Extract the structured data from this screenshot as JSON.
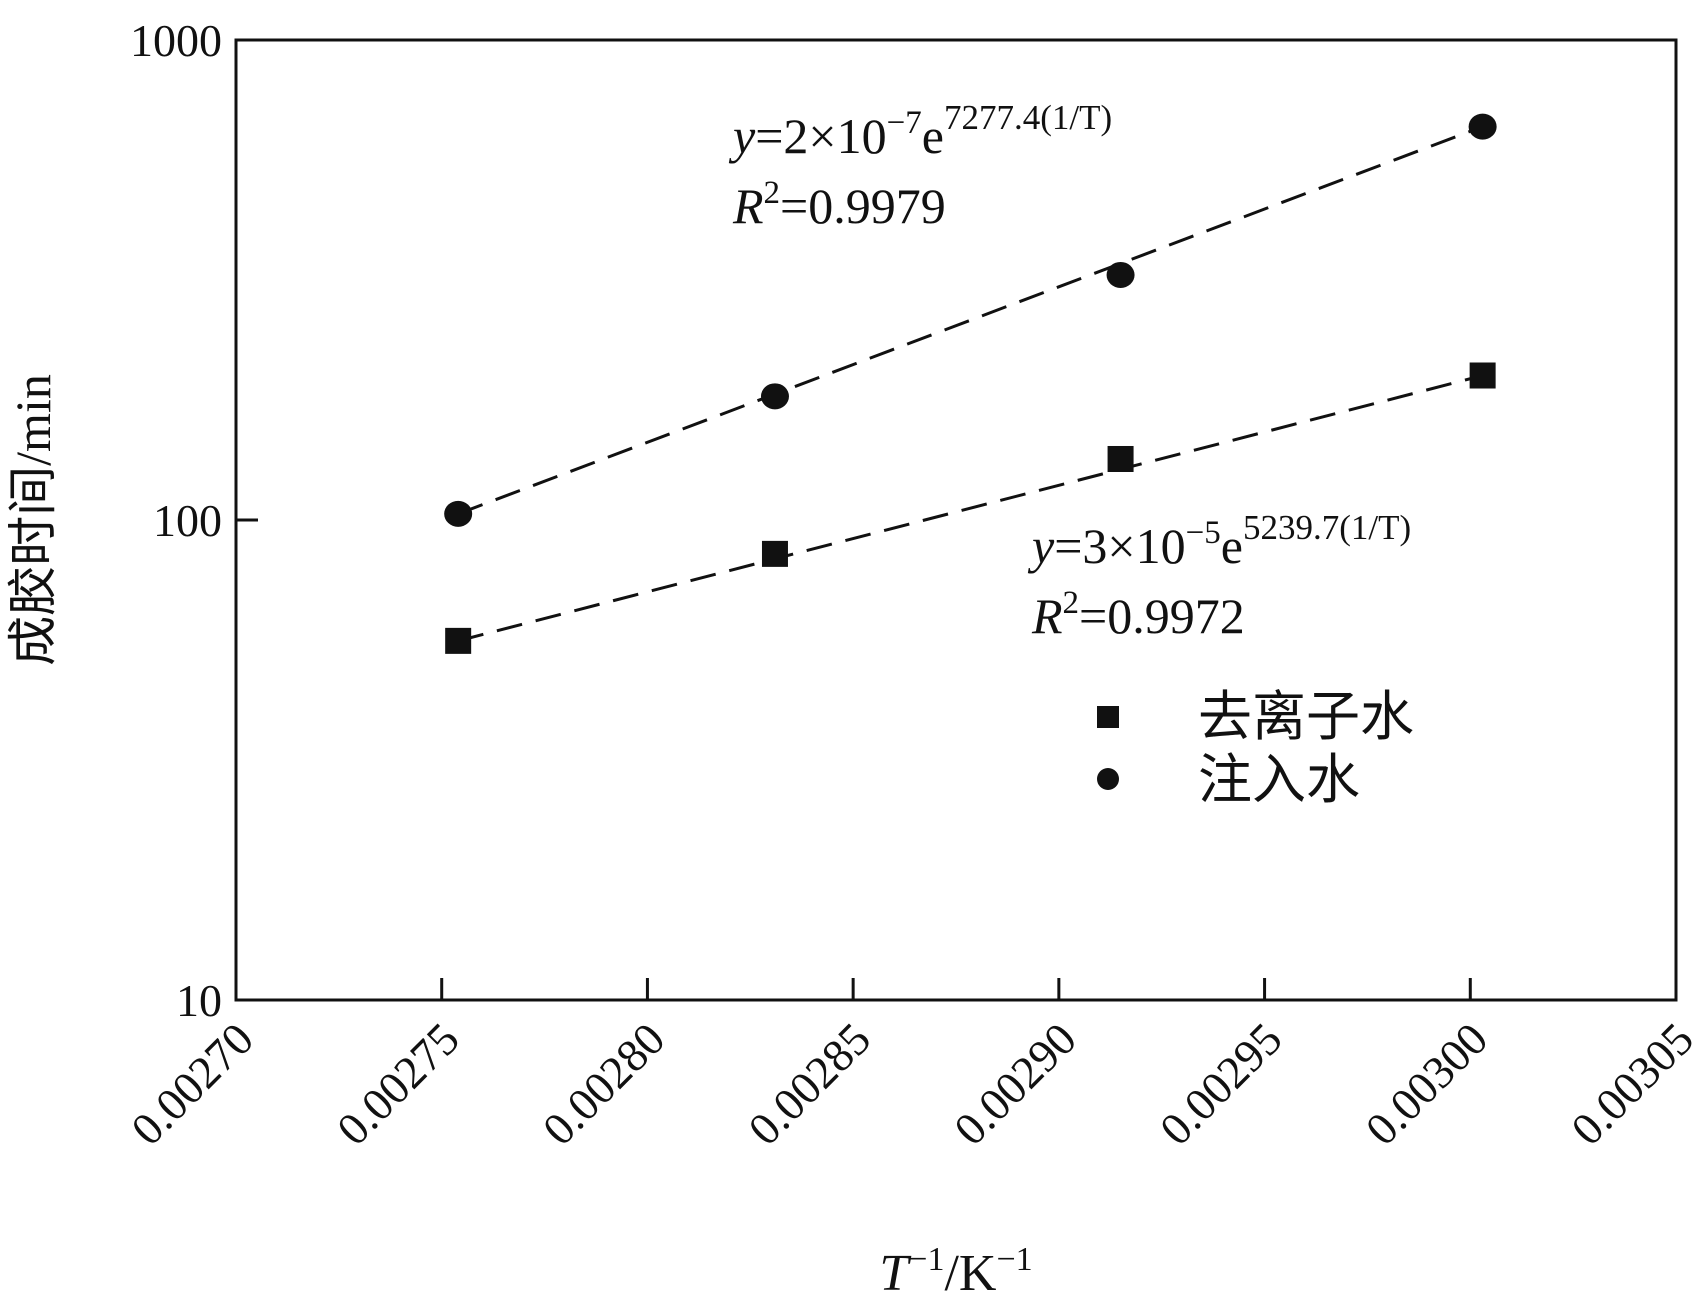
{
  "chart_data": {
    "type": "scatter",
    "xlabel": {
      "base": "T",
      "base_sup": "−1",
      "rest": "/K",
      "rest_sup": "−1"
    },
    "ylabel": "成胶时间/min",
    "xlim": [
      0.0027,
      0.00305
    ],
    "ylim": [
      10,
      1000
    ],
    "yscale": "log",
    "x_ticks": [
      "0.00270",
      "0.00275",
      "0.00280",
      "0.00285",
      "0.00290",
      "0.00295",
      "0.00300",
      "0.00305"
    ],
    "y_ticks": [
      {
        "value": 10,
        "label": "10"
      },
      {
        "value": 100,
        "label": "100"
      },
      {
        "value": 1000,
        "label": "1000"
      }
    ],
    "grid": false,
    "legend_position": "center-right",
    "series": [
      {
        "name": "去离子水",
        "marker": "square",
        "points": [
          {
            "x": 0.002754,
            "y": 56
          },
          {
            "x": 0.002831,
            "y": 85
          },
          {
            "x": 0.002915,
            "y": 134
          },
          {
            "x": 0.003003,
            "y": 200
          }
        ],
        "fit": {
          "x": [
            0.002754,
            0.003003
          ]
        },
        "equation": {
          "lhs": "y",
          "coef": "=3×10",
          "exp": "−5",
          "e": "e",
          "sup": "5239.7(1/T)",
          "r2_label": "R",
          "r2_sup": "2",
          "r2_value": "=0.9972"
        }
      },
      {
        "name": "注入水",
        "marker": "circle",
        "points": [
          {
            "x": 0.002754,
            "y": 103
          },
          {
            "x": 0.002831,
            "y": 181
          },
          {
            "x": 0.002915,
            "y": 324
          },
          {
            "x": 0.003003,
            "y": 660
          }
        ],
        "fit": {
          "x": [
            0.002754,
            0.003003
          ]
        },
        "equation": {
          "lhs": "y",
          "coef": "=2×10",
          "exp": "−7",
          "e": "e",
          "sup": "7277.4(1/T)",
          "r2_label": "R",
          "r2_sup": "2",
          "r2_value": "=0.9979"
        }
      }
    ],
    "colors": {
      "marker": "#111111",
      "axis": "#111111",
      "fit_line": "#111111"
    }
  }
}
